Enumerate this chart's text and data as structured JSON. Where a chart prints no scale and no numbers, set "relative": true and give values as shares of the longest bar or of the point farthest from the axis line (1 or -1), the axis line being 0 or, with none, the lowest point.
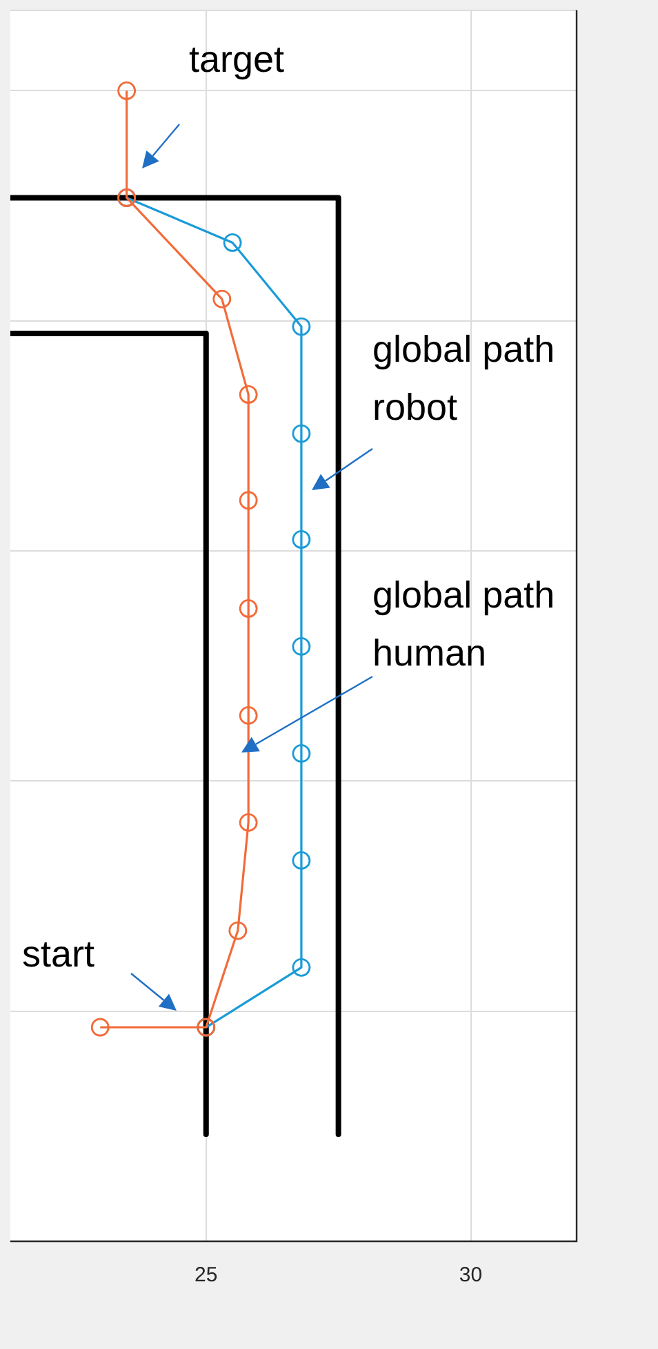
{
  "chart_data": {
    "type": "line",
    "relative": true,
    "xlim": [
      21.3,
      32
    ],
    "xticks": [
      25,
      30
    ],
    "grid": true,
    "legend": false,
    "marker": "circle",
    "line_style": "solid",
    "series": [
      {
        "color": "#000000",
        "marker": "none",
        "x": [
          21.3,
          27.5,
          27.5
        ],
        "values": [
          0.907,
          0.907,
          0.093
        ]
      },
      {
        "color": "#000000",
        "marker": "none",
        "x": [
          21.3,
          25.0,
          25.0
        ],
        "values": [
          0.789,
          0.789,
          0.093
        ]
      },
      {
        "color": "#1a9bd7",
        "x": [
          25.0,
          26.8,
          26.8,
          26.8,
          26.8,
          26.8,
          26.8,
          26.8,
          25.5,
          23.5
        ],
        "values": [
          0.186,
          0.238,
          0.331,
          0.424,
          0.517,
          0.61,
          0.702,
          0.795,
          0.868,
          0.907
        ]
      },
      {
        "color": "#f26b38",
        "x": [
          23.0,
          25.0,
          25.6,
          25.8,
          25.8,
          25.8,
          25.8,
          25.8,
          25.3,
          23.5,
          23.5
        ],
        "values": [
          0.186,
          0.186,
          0.27,
          0.364,
          0.457,
          0.55,
          0.644,
          0.736,
          0.819,
          0.907,
          1
        ]
      }
    ],
    "annotations": [
      "target",
      "global path\nrobot",
      "global path\nhuman",
      "start"
    ]
  }
}
